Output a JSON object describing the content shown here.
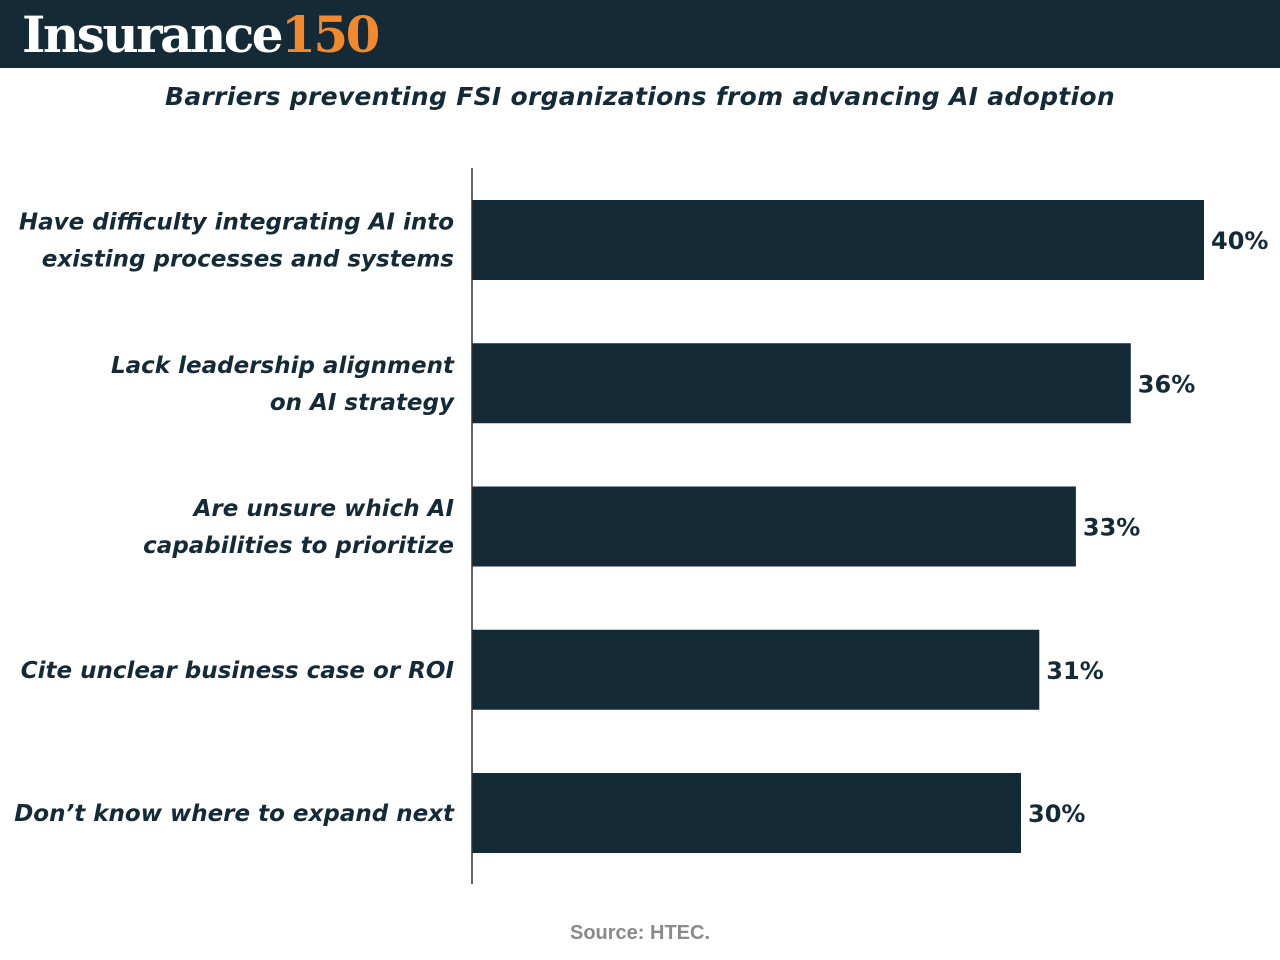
{
  "brand": {
    "logo_word": "Insurance",
    "logo_number": "150",
    "header_color": "#152a37",
    "accent_color": "#f2892c"
  },
  "chart_data": {
    "type": "bar",
    "orientation": "horizontal",
    "title": "Barriers preventing FSI organizations from advancing AI adoption",
    "categories": [
      [
        "Have difficulty integrating AI into",
        "existing processes and systems"
      ],
      [
        "Lack leadership alignment",
        "on AI strategy"
      ],
      [
        "Are unsure which AI",
        "capabilities to prioritize "
      ],
      [
        "Cite unclear business case or ROI"
      ],
      [
        "Don’t know where to expand next"
      ]
    ],
    "values": [
      40,
      36,
      33,
      31,
      30
    ],
    "value_labels": [
      "40%",
      "36%",
      "33%",
      "31%",
      "30%"
    ],
    "unit": "%",
    "bar_color": "#152a37",
    "xlim": [
      0,
      40
    ],
    "grid": false
  },
  "footer": {
    "source": "Source: HTEC."
  }
}
